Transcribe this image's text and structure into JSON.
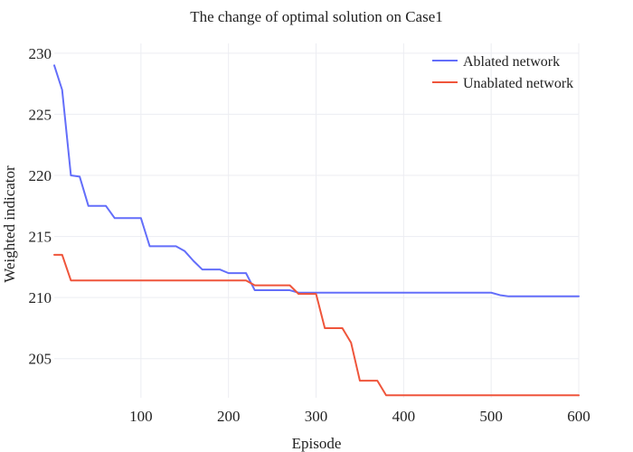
{
  "chart_data": {
    "type": "line",
    "title": "The change of optimal solution on Case1",
    "xlabel": "Episode",
    "ylabel": "Weighted indicator",
    "xlim": [
      1,
      600
    ],
    "ylim": [
      201.8,
      230.8
    ],
    "x_ticks": [
      100,
      200,
      300,
      400,
      500,
      600
    ],
    "y_ticks": [
      205,
      210,
      215,
      220,
      225,
      230
    ],
    "grid": true,
    "legend_position": "top-right",
    "series": [
      {
        "name": "Ablated network",
        "color": "#636efa",
        "x": [
          1,
          10,
          20,
          30,
          40,
          50,
          60,
          70,
          80,
          90,
          100,
          110,
          120,
          130,
          140,
          150,
          160,
          170,
          180,
          190,
          200,
          210,
          220,
          230,
          240,
          250,
          260,
          270,
          280,
          290,
          300,
          310,
          320,
          330,
          340,
          350,
          360,
          370,
          380,
          390,
          400,
          410,
          420,
          430,
          440,
          450,
          460,
          470,
          480,
          490,
          500,
          510,
          520,
          530,
          540,
          550,
          560,
          570,
          580,
          590,
          600
        ],
        "y": [
          229.0,
          227.0,
          220.0,
          219.9,
          217.5,
          217.5,
          217.5,
          216.5,
          216.5,
          216.5,
          216.5,
          214.2,
          214.2,
          214.2,
          214.2,
          213.8,
          213.0,
          212.3,
          212.3,
          212.3,
          212.0,
          212.0,
          212.0,
          210.6,
          210.6,
          210.6,
          210.6,
          210.6,
          210.4,
          210.4,
          210.4,
          210.4,
          210.4,
          210.4,
          210.4,
          210.4,
          210.4,
          210.4,
          210.4,
          210.4,
          210.4,
          210.4,
          210.4,
          210.4,
          210.4,
          210.4,
          210.4,
          210.4,
          210.4,
          210.4,
          210.4,
          210.2,
          210.1,
          210.1,
          210.1,
          210.1,
          210.1,
          210.1,
          210.1,
          210.1,
          210.1
        ]
      },
      {
        "name": "Unablated network",
        "color": "#ef553b",
        "x": [
          1,
          10,
          20,
          30,
          40,
          50,
          60,
          70,
          80,
          90,
          100,
          110,
          120,
          130,
          140,
          150,
          160,
          170,
          180,
          190,
          200,
          210,
          220,
          230,
          240,
          250,
          260,
          270,
          280,
          290,
          300,
          310,
          320,
          330,
          340,
          350,
          360,
          370,
          380,
          390,
          400,
          410,
          420,
          430,
          440,
          450,
          460,
          470,
          480,
          490,
          500,
          510,
          520,
          530,
          540,
          550,
          560,
          570,
          580,
          590,
          600
        ],
        "y": [
          213.5,
          213.5,
          211.4,
          211.4,
          211.4,
          211.4,
          211.4,
          211.4,
          211.4,
          211.4,
          211.4,
          211.4,
          211.4,
          211.4,
          211.4,
          211.4,
          211.4,
          211.4,
          211.4,
          211.4,
          211.4,
          211.4,
          211.4,
          211.0,
          211.0,
          211.0,
          211.0,
          211.0,
          210.3,
          210.3,
          210.3,
          207.5,
          207.5,
          207.5,
          206.3,
          203.2,
          203.2,
          203.2,
          202.0,
          202.0,
          202.0,
          202.0,
          202.0,
          202.0,
          202.0,
          202.0,
          202.0,
          202.0,
          202.0,
          202.0,
          202.0,
          202.0,
          202.0,
          202.0,
          202.0,
          202.0,
          202.0,
          202.0,
          202.0,
          202.0,
          202.0
        ]
      }
    ]
  }
}
